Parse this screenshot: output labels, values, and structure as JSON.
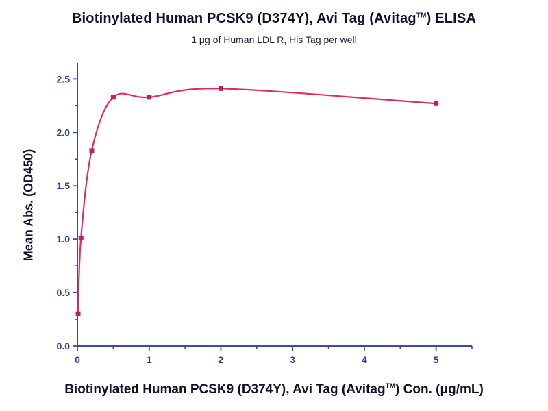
{
  "chart_data": {
    "type": "scatter-line",
    "title": "Biotinylated Human PCSK9 (D374Y), Avi Tag (Avitag™) ELISA",
    "title_prefix": "Biotinylated Human PCSK9 (D374Y), Avi Tag (Avitag",
    "title_tm": "TM",
    "title_suffix": ") ELISA",
    "subtitle": "1 μg of Human LDL R, His Tag per well",
    "xlabel": "Biotinylated Human PCSK9 (D374Y), Avi Tag (Avitag™) Con. (μg/mL)",
    "xlabel_prefix": "Biotinylated Human PCSK9 (D374Y), Avi Tag (Avitag",
    "xlabel_tm": "TM",
    "xlabel_suffix": ") Con. (μg/mL)",
    "ylabel": "Mean Abs. (OD450)",
    "x": [
      0.01,
      0.05,
      0.2,
      0.5,
      1,
      2,
      5
    ],
    "y": [
      0.3,
      1.01,
      1.83,
      2.33,
      2.33,
      2.41,
      2.27
    ],
    "xlim": [
      0,
      5.5
    ],
    "ylim": [
      0,
      2.65
    ],
    "x_ticks": [
      0,
      1,
      2,
      3,
      4,
      5
    ],
    "y_ticks": [
      0.0,
      0.5,
      1.0,
      1.5,
      2.0,
      2.5
    ],
    "x_minor_step": 0.5,
    "y_minor_step": 0.25,
    "grid": false,
    "legend": "none",
    "colors": {
      "curve": "#e02a68",
      "marker": "#c02060",
      "axis": "#3a4aa5",
      "tick_label": "#2b3a9c",
      "title_text": "#10102e",
      "subtitle_text": "#1c1c4e",
      "axis_label_text": "#10102e"
    }
  }
}
